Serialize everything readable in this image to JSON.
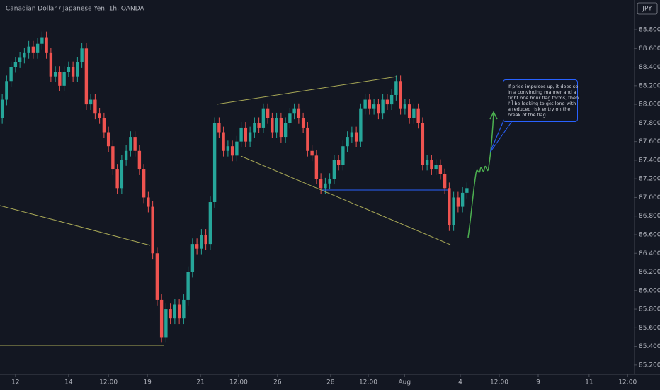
{
  "chart_data": {
    "type": "candlestick",
    "title": "Canadian Dollar / Japanese Yen, 1h, OANDA",
    "currency": "JPY",
    "up_color": "#26a69a",
    "down_color": "#ef5350",
    "grid": false,
    "annotation": [
      "If price impulses up, it does so",
      "in a convincing manner and a",
      "tight one hour flag forms, then",
      "I'll be looking to get long with",
      "a reduced risk entry on the",
      "break of the flag."
    ],
    "xlim": [
      0,
      143.2
    ],
    "xticks": [
      {
        "value": 3.5,
        "label": "12"
      },
      {
        "value": 15.5,
        "label": "14"
      },
      {
        "value": 24.5,
        "label": "12:00"
      },
      {
        "value": 33.3,
        "label": "19"
      },
      {
        "value": 45.3,
        "label": "21"
      },
      {
        "value": 53.9,
        "label": "12:00"
      },
      {
        "value": 62.7,
        "label": "26"
      },
      {
        "value": 74.7,
        "label": "28"
      },
      {
        "value": 83.2,
        "label": "12:00"
      },
      {
        "value": 91.4,
        "label": "Aug"
      },
      {
        "value": 104,
        "label": "4"
      },
      {
        "value": 112.8,
        "label": "12:00"
      },
      {
        "value": 121.6,
        "label": "9"
      },
      {
        "value": 133.1,
        "label": "11"
      },
      {
        "value": 141.8,
        "label": "12:00"
      }
    ],
    "ylim": [
      85.1,
      89.12
    ],
    "yticks": [
      {
        "value": 85.2,
        "label": "85.200"
      },
      {
        "value": 85.4,
        "label": "85.400"
      },
      {
        "value": 85.6,
        "label": "85.600"
      },
      {
        "value": 85.8,
        "label": "85.800"
      },
      {
        "value": 86,
        "label": "86.000"
      },
      {
        "value": 86.2,
        "label": "86.200"
      },
      {
        "value": 86.4,
        "label": "86.400"
      },
      {
        "value": 86.6,
        "label": "86.600"
      },
      {
        "value": 86.8,
        "label": "86.800"
      },
      {
        "value": 87,
        "label": "87.000"
      },
      {
        "value": 87.2,
        "label": "87.200"
      },
      {
        "value": 87.4,
        "label": "87.400"
      },
      {
        "value": 87.6,
        "label": "87.600"
      },
      {
        "value": 87.8,
        "label": "87.800"
      },
      {
        "value": 88,
        "label": "88.000"
      },
      {
        "value": 88.2,
        "label": "88.200"
      },
      {
        "value": 88.4,
        "label": "88.400"
      },
      {
        "value": 88.6,
        "label": "88.600"
      },
      {
        "value": 88.8,
        "label": "88.800"
      }
    ],
    "open": [
      87.85,
      88.05,
      88.25,
      88.4,
      88.45,
      88.5,
      88.55,
      88.62,
      88.55,
      88.65,
      88.72,
      88.55,
      88.3,
      88.35,
      88.2,
      88.35,
      88.4,
      88.3,
      88.45,
      88.6,
      88.0,
      88.05,
      87.9,
      87.85,
      87.7,
      87.55,
      87.3,
      87.1,
      87.4,
      87.5,
      87.65,
      87.5,
      87.3,
      87.0,
      86.9,
      86.4,
      85.9,
      85.5,
      85.8,
      85.7,
      85.85,
      85.7,
      85.9,
      86.2,
      86.5,
      86.45,
      86.6,
      86.5,
      86.95,
      87.8,
      87.7,
      87.5,
      87.55,
      87.45,
      87.6,
      87.75,
      87.6,
      87.7,
      87.8,
      87.75,
      87.95,
      87.85,
      87.7,
      87.85,
      87.65,
      87.8,
      87.9,
      87.95,
      87.85,
      87.75,
      87.5,
      87.45,
      87.2,
      87.1,
      87.15,
      87.2,
      87.4,
      87.35,
      87.55,
      87.65,
      87.7,
      87.6,
      87.95,
      88.05,
      87.95,
      88.0,
      87.9,
      88.05,
      88.0,
      88.1,
      88.25,
      87.95,
      88.0,
      87.85,
      87.95,
      87.8,
      87.35,
      87.4,
      87.3,
      87.35,
      87.25,
      87.1,
      86.7,
      87.0,
      86.9,
      87.05
    ],
    "high": [
      88.11,
      88.31,
      88.46,
      88.51,
      88.56,
      88.61,
      88.68,
      88.68,
      88.71,
      88.78,
      88.78,
      88.61,
      88.41,
      88.41,
      88.41,
      88.46,
      88.46,
      88.51,
      88.66,
      88.66,
      88.11,
      88.11,
      87.96,
      87.91,
      87.76,
      87.61,
      87.36,
      87.46,
      87.56,
      87.71,
      87.71,
      87.56,
      87.36,
      87.06,
      86.96,
      86.46,
      85.96,
      85.86,
      85.86,
      85.91,
      85.91,
      85.96,
      86.26,
      86.56,
      86.56,
      86.66,
      86.66,
      87.01,
      87.86,
      87.86,
      87.76,
      87.61,
      87.61,
      87.66,
      87.81,
      87.81,
      87.76,
      87.86,
      87.86,
      88.01,
      88.01,
      87.91,
      87.91,
      87.91,
      87.86,
      87.96,
      88.01,
      88.01,
      87.91,
      87.81,
      87.56,
      87.51,
      87.26,
      87.21,
      87.26,
      87.46,
      87.46,
      87.61,
      87.71,
      87.76,
      87.76,
      88.01,
      88.11,
      88.11,
      88.06,
      88.06,
      88.11,
      88.11,
      88.16,
      88.31,
      88.31,
      88.06,
      88.06,
      88.01,
      88.01,
      87.86,
      87.46,
      87.46,
      87.41,
      87.41,
      87.31,
      87.16,
      87.06,
      87.06,
      87.11,
      87.16
    ],
    "low": [
      87.79,
      87.99,
      88.19,
      88.34,
      88.39,
      88.44,
      88.49,
      88.49,
      88.49,
      88.59,
      88.49,
      88.24,
      88.24,
      88.14,
      88.14,
      88.29,
      88.24,
      88.24,
      88.39,
      87.94,
      87.94,
      87.84,
      87.79,
      87.64,
      87.49,
      87.24,
      87.04,
      87.04,
      87.34,
      87.44,
      87.44,
      87.24,
      86.94,
      86.84,
      86.34,
      85.84,
      85.44,
      85.44,
      85.64,
      85.64,
      85.64,
      85.64,
      85.84,
      86.14,
      86.39,
      86.39,
      86.44,
      86.44,
      86.89,
      87.64,
      87.44,
      87.44,
      87.39,
      87.39,
      87.54,
      87.54,
      87.54,
      87.64,
      87.69,
      87.69,
      87.79,
      87.64,
      87.64,
      87.59,
      87.59,
      87.74,
      87.84,
      87.79,
      87.69,
      87.44,
      87.39,
      87.14,
      87.04,
      87.04,
      87.09,
      87.14,
      87.29,
      87.29,
      87.49,
      87.59,
      87.54,
      87.54,
      87.89,
      87.89,
      87.89,
      87.84,
      87.84,
      87.94,
      87.94,
      88.04,
      87.89,
      87.89,
      87.79,
      87.79,
      87.74,
      87.29,
      87.29,
      87.24,
      87.24,
      87.19,
      87.04,
      86.64,
      86.64,
      86.84,
      86.84,
      86.99
    ],
    "close": [
      88.05,
      88.25,
      88.4,
      88.45,
      88.5,
      88.55,
      88.62,
      88.55,
      88.65,
      88.72,
      88.55,
      88.3,
      88.35,
      88.2,
      88.35,
      88.4,
      88.3,
      88.45,
      88.6,
      88.0,
      88.05,
      87.9,
      87.85,
      87.7,
      87.55,
      87.3,
      87.1,
      87.4,
      87.5,
      87.65,
      87.5,
      87.3,
      87.0,
      86.9,
      86.4,
      85.9,
      85.5,
      85.8,
      85.7,
      85.85,
      85.7,
      85.9,
      86.2,
      86.5,
      86.45,
      86.6,
      86.5,
      86.95,
      87.8,
      87.7,
      87.5,
      87.55,
      87.45,
      87.6,
      87.75,
      87.6,
      87.7,
      87.8,
      87.75,
      87.95,
      87.85,
      87.7,
      87.85,
      87.65,
      87.8,
      87.9,
      87.95,
      87.85,
      87.75,
      87.5,
      87.45,
      87.2,
      87.1,
      87.15,
      87.2,
      87.4,
      87.35,
      87.55,
      87.65,
      87.7,
      87.6,
      87.95,
      88.05,
      87.95,
      88.0,
      87.9,
      88.05,
      88.0,
      88.1,
      88.25,
      87.95,
      88.0,
      87.85,
      87.95,
      87.8,
      87.35,
      87.4,
      87.3,
      87.35,
      87.25,
      87.1,
      86.7,
      87.0,
      86.9,
      87.05,
      87.1
    ]
  }
}
